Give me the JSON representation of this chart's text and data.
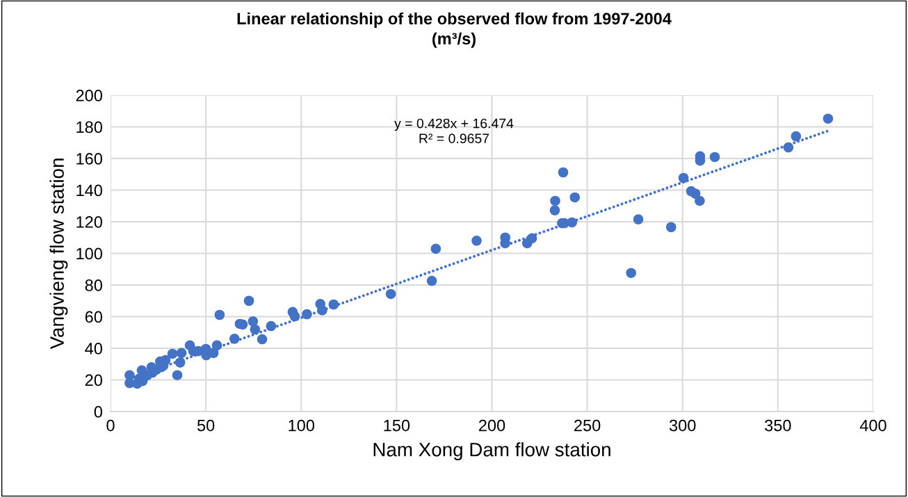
{
  "chart_data": {
    "type": "scatter",
    "title": "Linear relationship of the observed flow from 1997-2004\n(m³/s)",
    "xlabel": "Nam Xong Dam flow station",
    "ylabel": "Vangvieng flow station",
    "annotations": [
      "y = 0.428x + 16.474",
      "R² = 0.9657"
    ],
    "xlim": [
      0,
      400
    ],
    "xticks": [
      0,
      50,
      100,
      150,
      200,
      250,
      300,
      350,
      400
    ],
    "ylim": [
      0,
      200
    ],
    "yticks": [
      0,
      20,
      40,
      60,
      80,
      100,
      120,
      140,
      160,
      180,
      200
    ],
    "grid": true,
    "legend": false,
    "series": [
      {
        "color": "#4472c4",
        "marker": "circle",
        "x": [
          10,
          10,
          14,
          15,
          16.4,
          16.8,
          19.3,
          21.5,
          22,
          24,
          26,
          26.6,
          28.8,
          27.7,
          32.5,
          35,
          36.5,
          37.2,
          41.6,
          43.4,
          46,
          50,
          50.2,
          54,
          55.8,
          57.2,
          65,
          67.8,
          69.3,
          72.6,
          74.7,
          75.8,
          79.5,
          84.2,
          95.5,
          96.6,
          103,
          110,
          111,
          117,
          147,
          168.5,
          170.6,
          192,
          207,
          207,
          218.5,
          221,
          233.2,
          233,
          237.4,
          236.8,
          238,
          242,
          243.5,
          276.8,
          273,
          294,
          300.5,
          304.5,
          306.7,
          309,
          309.2,
          309.2,
          316.9,
          355.5,
          359.5,
          376.3
        ],
        "values": [
          22.9,
          18,
          17.6,
          20.7,
          26,
          19.3,
          22.9,
          28,
          24.6,
          26.4,
          31.6,
          28.1,
          32.5,
          29,
          36.5,
          23,
          31,
          37,
          41.8,
          38.2,
          38.2,
          39.6,
          35.6,
          37,
          41.8,
          61.1,
          46,
          55.4,
          55,
          70,
          57,
          51.9,
          45.7,
          54,
          62.9,
          60.2,
          61.5,
          68,
          64,
          67.7,
          74.3,
          82.6,
          102.9,
          108,
          110,
          106.4,
          106.4,
          109.5,
          133.2,
          127.2,
          151.2,
          119.1,
          119.1,
          119.6,
          135.4,
          121.5,
          87.6,
          116.6,
          147.7,
          139.3,
          137.8,
          133.2,
          161.4,
          158.6,
          160.9,
          167,
          174,
          185.2
        ]
      },
      {
        "type": "line",
        "color": "#4472c4",
        "line_style": "dotted",
        "x": [
          10,
          376.3
        ],
        "values": [
          20.8,
          177.5
        ]
      }
    ]
  }
}
